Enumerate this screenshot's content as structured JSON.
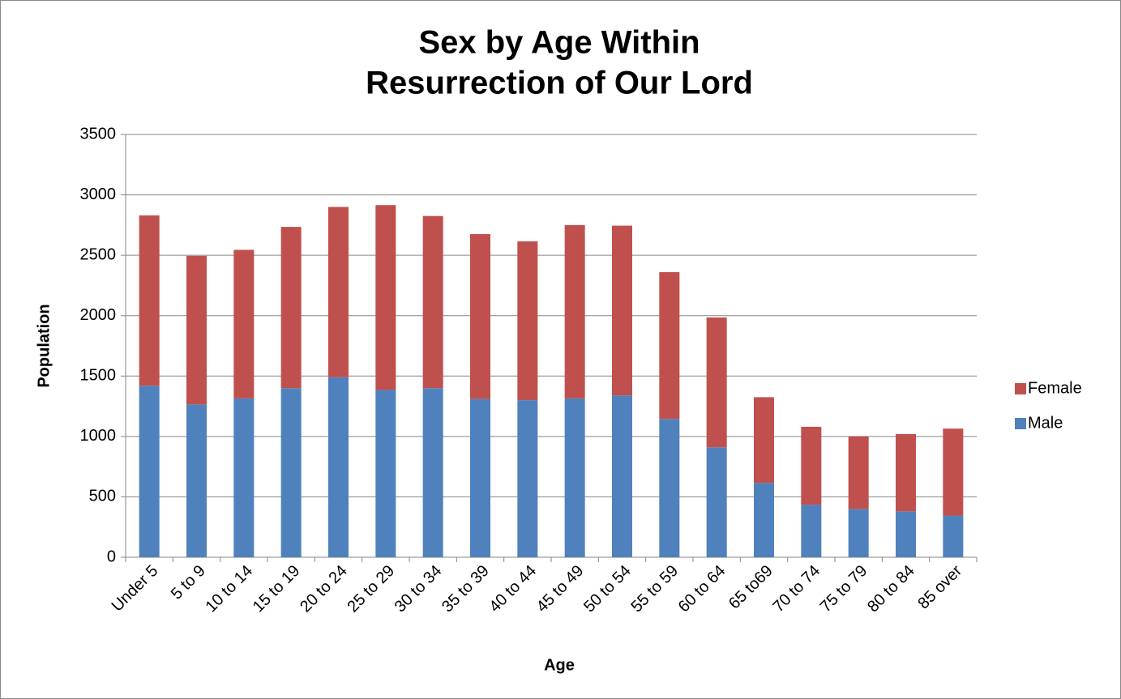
{
  "chart_data": {
    "type": "stacked_bar",
    "title": [
      "Sex by Age Within",
      "Resurrection of Our Lord"
    ],
    "x_label": "Age",
    "y_label": "Population",
    "categories": [
      "Under 5",
      "5 to 9",
      "10 to 14",
      "15 to 19",
      "20 to 24",
      "25 to 29",
      "30 to 34",
      "35 to 39",
      "40 to 44",
      "45 to 49",
      "50 to 54",
      "55 to 59",
      "60 to 64",
      "65 to69",
      "70 to 74",
      "75 to 79",
      "80 to 84",
      "85 over"
    ],
    "series": [
      {
        "name": "Male",
        "color": "#4f81bd",
        "values": [
          1420,
          1265,
          1315,
          1400,
          1490,
          1385,
          1400,
          1310,
          1300,
          1315,
          1340,
          1145,
          910,
          615,
          435,
          400,
          380,
          345
        ]
      },
      {
        "name": "Female",
        "color": "#c0504d",
        "values": [
          1410,
          1230,
          1230,
          1335,
          1410,
          1530,
          1425,
          1365,
          1315,
          1435,
          1405,
          1215,
          1075,
          710,
          645,
          600,
          640,
          720
        ]
      }
    ],
    "ylim": [
      0,
      3500
    ],
    "yticks": [
      0,
      500,
      1000,
      1500,
      2000,
      2500,
      3000,
      3500
    ],
    "grid": true,
    "legend": "right"
  }
}
